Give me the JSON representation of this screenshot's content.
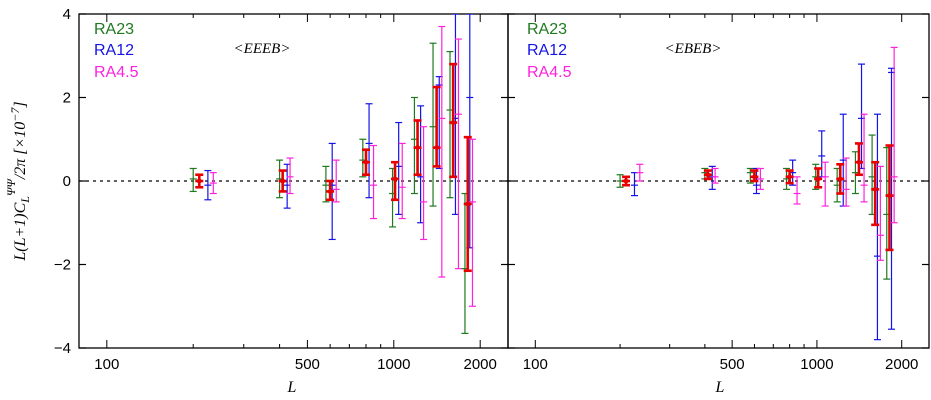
{
  "chart_data": [
    {
      "type": "scatter",
      "panel": "left",
      "title": "<EEEB>",
      "xlabel": "L",
      "ylabel": "L(L+1)C_L^ΨΨ/2π [×10^-7]",
      "xscale": "log",
      "xlim": [
        80,
        2500
      ],
      "ylim": [
        -4,
        4
      ],
      "xticks": [
        100,
        500,
        1000,
        2000
      ],
      "yticks": [
        -4,
        -2,
        0,
        2,
        4
      ],
      "legend": "top-left",
      "reference_line": {
        "y": 0,
        "style": "dotted"
      },
      "series": [
        {
          "name": "RA23",
          "color": "#1f7a1f",
          "points": [
            {
              "x": 200,
              "y": 0.05,
              "lo": -0.25,
              "hi": 0.3
            },
            {
              "x": 400,
              "y": 0.05,
              "lo": -0.4,
              "hi": 0.5
            },
            {
              "x": 580,
              "y": -0.1,
              "lo": -0.5,
              "hi": 0.35
            },
            {
              "x": 780,
              "y": 0.5,
              "lo": 0.1,
              "hi": 1.0
            },
            {
              "x": 990,
              "y": -0.3,
              "lo": -1.1,
              "hi": 0.3
            },
            {
              "x": 1180,
              "y": 1.0,
              "lo": -0.3,
              "hi": 2.0
            },
            {
              "x": 1370,
              "y": 1.3,
              "lo": -0.6,
              "hi": 3.3
            },
            {
              "x": 1570,
              "y": 1.7,
              "lo": -0.4,
              "hi": 3.1
            },
            {
              "x": 1770,
              "y": -2.1,
              "lo": -3.65,
              "hi": -0.3
            }
          ]
        },
        {
          "name": "RA12",
          "color": "#1414e6",
          "points": [
            {
              "x": 225,
              "y": -0.1,
              "lo": -0.45,
              "hi": 0.25
            },
            {
              "x": 425,
              "y": -0.1,
              "lo": -0.65,
              "hi": 0.4
            },
            {
              "x": 610,
              "y": -0.1,
              "lo": -1.4,
              "hi": 0.9
            },
            {
              "x": 820,
              "y": 0.9,
              "lo": -0.4,
              "hi": 1.85
            },
            {
              "x": 1040,
              "y": 0.35,
              "lo": -0.8,
              "hi": 1.4
            },
            {
              "x": 1240,
              "y": 0.1,
              "lo": -1.0,
              "hi": 1.8
            },
            {
              "x": 1440,
              "y": 2.3,
              "lo": 0.3,
              "hi": 2.5
            },
            {
              "x": 1640,
              "y": 1.5,
              "lo": -0.8,
              "hi": 4.0
            },
            {
              "x": 1840,
              "y": 2.0,
              "lo": -1.6,
              "hi": 4.0
            }
          ]
        },
        {
          "name": "RA4.5",
          "color": "#ff22dd",
          "points": [
            {
              "x": 235,
              "y": -0.05,
              "lo": -0.3,
              "hi": 0.2
            },
            {
              "x": 435,
              "y": 0.1,
              "lo": -0.3,
              "hi": 0.55
            },
            {
              "x": 630,
              "y": -0.2,
              "lo": -0.5,
              "hi": 0.5
            },
            {
              "x": 850,
              "y": -0.1,
              "lo": -0.9,
              "hi": 0.85
            },
            {
              "x": 1070,
              "y": -0.15,
              "lo": -0.9,
              "hi": 0.9
            },
            {
              "x": 1270,
              "y": -0.5,
              "lo": -1.4,
              "hi": 1.3
            },
            {
              "x": 1470,
              "y": 1.5,
              "lo": -2.3,
              "hi": 3.7
            },
            {
              "x": 1680,
              "y": 1.6,
              "lo": -2.1,
              "hi": 3.4
            },
            {
              "x": 1880,
              "y": -0.5,
              "lo": -3.0,
              "hi": 1.0
            }
          ]
        },
        {
          "color": "#e60000",
          "bold": true,
          "points": [
            {
              "x": 210,
              "y": 0.0,
              "lo": -0.15,
              "hi": 0.15
            },
            {
              "x": 410,
              "y": 0.0,
              "lo": -0.25,
              "hi": 0.25
            },
            {
              "x": 600,
              "y": -0.25,
              "lo": -0.45,
              "hi": 0.0
            },
            {
              "x": 800,
              "y": 0.45,
              "lo": 0.15,
              "hi": 0.75
            },
            {
              "x": 1010,
              "y": 0.05,
              "lo": -0.45,
              "hi": 0.45
            },
            {
              "x": 1210,
              "y": 0.8,
              "lo": 0.15,
              "hi": 1.45
            },
            {
              "x": 1410,
              "y": 0.8,
              "lo": 0.35,
              "hi": 2.25
            },
            {
              "x": 1610,
              "y": 1.4,
              "lo": 0.1,
              "hi": 2.8
            },
            {
              "x": 1810,
              "y": -0.55,
              "lo": -2.15,
              "hi": 1.05
            }
          ]
        }
      ]
    },
    {
      "type": "scatter",
      "panel": "right",
      "title": "<EBEB>",
      "xlabel": "L",
      "xscale": "log",
      "xlim": [
        80,
        2500
      ],
      "ylim": [
        -4,
        4
      ],
      "xticks": [
        100,
        500,
        1000,
        2000
      ],
      "legend": "top-left",
      "reference_line": {
        "y": 0,
        "style": "dotted"
      },
      "series": [
        {
          "name": "RA23",
          "color": "#1f7a1f",
          "points": [
            {
              "x": 200,
              "y": 0.0,
              "lo": -0.15,
              "hi": 0.15
            },
            {
              "x": 400,
              "y": 0.2,
              "lo": 0.05,
              "hi": 0.3
            },
            {
              "x": 580,
              "y": 0.2,
              "lo": -0.05,
              "hi": 0.3
            },
            {
              "x": 780,
              "y": 0.05,
              "lo": -0.2,
              "hi": 0.3
            },
            {
              "x": 990,
              "y": 0.1,
              "lo": -0.2,
              "hi": 0.4
            },
            {
              "x": 1180,
              "y": -0.1,
              "lo": -0.5,
              "hi": 0.3
            },
            {
              "x": 1370,
              "y": 0.2,
              "lo": -0.3,
              "hi": 0.7
            },
            {
              "x": 1570,
              "y": 0.1,
              "lo": -0.8,
              "hi": 1.1
            },
            {
              "x": 1770,
              "y": -0.8,
              "lo": -2.35,
              "hi": 0.8
            }
          ]
        },
        {
          "name": "RA12",
          "color": "#1414e6",
          "points": [
            {
              "x": 225,
              "y": -0.1,
              "lo": -0.35,
              "hi": 0.2
            },
            {
              "x": 425,
              "y": 0.1,
              "lo": -0.2,
              "hi": 0.35
            },
            {
              "x": 610,
              "y": -0.1,
              "lo": -0.3,
              "hi": 0.3
            },
            {
              "x": 820,
              "y": 0.2,
              "lo": -0.1,
              "hi": 0.5
            },
            {
              "x": 1040,
              "y": 0.6,
              "lo": 0.1,
              "hi": 1.2
            },
            {
              "x": 1240,
              "y": 0.5,
              "lo": -0.6,
              "hi": 1.6
            },
            {
              "x": 1440,
              "y": 1.5,
              "lo": 0.3,
              "hi": 2.8
            },
            {
              "x": 1640,
              "y": -1.8,
              "lo": -3.8,
              "hi": 1.6
            },
            {
              "x": 1840,
              "y": 2.6,
              "lo": -3.55,
              "hi": 2.7
            }
          ]
        },
        {
          "name": "RA4.5",
          "color": "#ff22dd",
          "points": [
            {
              "x": 235,
              "y": 0.2,
              "lo": 0.0,
              "hi": 0.4
            },
            {
              "x": 435,
              "y": 0.1,
              "lo": -0.05,
              "hi": 0.3
            },
            {
              "x": 630,
              "y": 0.05,
              "lo": -0.2,
              "hi": 0.3
            },
            {
              "x": 850,
              "y": -0.3,
              "lo": -0.55,
              "hi": 0.1
            },
            {
              "x": 1070,
              "y": 0.1,
              "lo": -0.6,
              "hi": 0.45
            },
            {
              "x": 1270,
              "y": -0.2,
              "lo": -0.6,
              "hi": 0.55
            },
            {
              "x": 1470,
              "y": -0.1,
              "lo": -0.5,
              "hi": 1.6
            },
            {
              "x": 1680,
              "y": -1.3,
              "lo": -1.9,
              "hi": 0.35
            },
            {
              "x": 1880,
              "y": 0.1,
              "lo": -1.0,
              "hi": 3.2
            }
          ]
        },
        {
          "color": "#e60000",
          "bold": true,
          "points": [
            {
              "x": 210,
              "y": 0.0,
              "lo": -0.1,
              "hi": 0.1
            },
            {
              "x": 410,
              "y": 0.15,
              "lo": 0.05,
              "hi": 0.25
            },
            {
              "x": 600,
              "y": 0.1,
              "lo": 0.0,
              "hi": 0.25
            },
            {
              "x": 800,
              "y": 0.1,
              "lo": -0.05,
              "hi": 0.25
            },
            {
              "x": 1010,
              "y": 0.05,
              "lo": -0.15,
              "hi": 0.3
            },
            {
              "x": 1210,
              "y": 0.05,
              "lo": -0.3,
              "hi": 0.4
            },
            {
              "x": 1410,
              "y": 0.45,
              "lo": 0.15,
              "hi": 0.9
            },
            {
              "x": 1610,
              "y": -0.2,
              "lo": -1.05,
              "hi": 0.45
            },
            {
              "x": 1810,
              "y": -0.35,
              "lo": -1.65,
              "hi": 0.85
            }
          ]
        }
      ]
    }
  ]
}
